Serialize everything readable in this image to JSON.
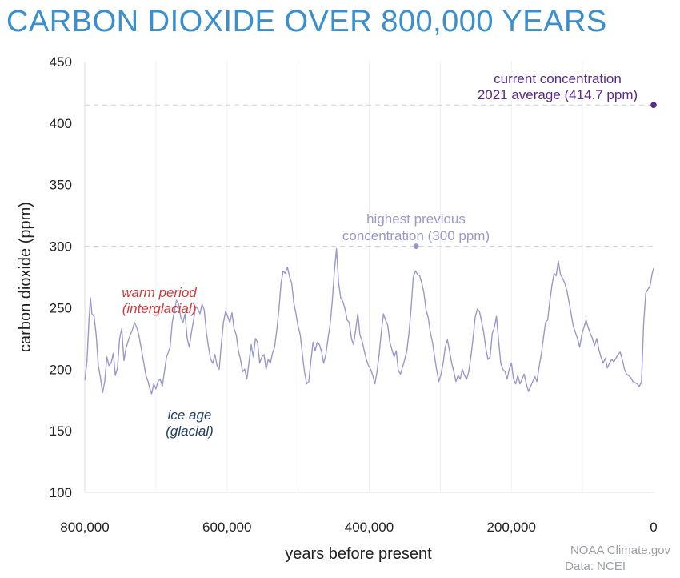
{
  "title": "CARBON DIOXIDE OVER 800,000 YEARS",
  "chart_data": {
    "type": "line",
    "xlabel": "years before present",
    "ylabel": "carbon dioxide (ppm)",
    "xlim": [
      800000,
      0
    ],
    "ylim": [
      100,
      450
    ],
    "x_ticks": [
      {
        "value": 800000,
        "label": "800,000"
      },
      {
        "value": 600000,
        "label": "600,000"
      },
      {
        "value": 400000,
        "label": "400,000"
      },
      {
        "value": 200000,
        "label": "200,000"
      },
      {
        "value": 0,
        "label": "0"
      }
    ],
    "y_ticks": [
      {
        "value": 100,
        "label": "100"
      },
      {
        "value": 150,
        "label": "150"
      },
      {
        "value": 200,
        "label": "200"
      },
      {
        "value": 250,
        "label": "250"
      },
      {
        "value": 300,
        "label": "300"
      },
      {
        "value": 350,
        "label": "350"
      },
      {
        "value": 400,
        "label": "400"
      },
      {
        "value": 450,
        "label": "450"
      }
    ],
    "grid": "minor vertical gridlines",
    "colors": {
      "series": "#9b99cc",
      "current": "#5b2a8c",
      "warm": "#d7373a",
      "glacial": "#1d3e66",
      "title": "#3a8fd0"
    },
    "series": [
      {
        "points": [
          [
            800000,
            191
          ],
          [
            797000,
            206
          ],
          [
            794000,
            241
          ],
          [
            792000,
            258
          ],
          [
            790000,
            245
          ],
          [
            787000,
            243
          ],
          [
            784000,
            228
          ],
          [
            781000,
            203
          ],
          [
            778000,
            193
          ],
          [
            775000,
            181
          ],
          [
            772000,
            190
          ],
          [
            769000,
            210
          ],
          [
            766000,
            203
          ],
          [
            763000,
            205
          ],
          [
            760000,
            213
          ],
          [
            757000,
            195
          ],
          [
            754000,
            201
          ],
          [
            751000,
            225
          ],
          [
            748000,
            233
          ],
          [
            745000,
            207
          ],
          [
            742000,
            217
          ],
          [
            739000,
            223
          ],
          [
            736000,
            228
          ],
          [
            733000,
            232
          ],
          [
            730000,
            238
          ],
          [
            727000,
            234
          ],
          [
            724000,
            228
          ],
          [
            720000,
            215
          ],
          [
            717000,
            205
          ],
          [
            714000,
            195
          ],
          [
            711000,
            190
          ],
          [
            709000,
            185
          ],
          [
            706000,
            180
          ],
          [
            703000,
            188
          ],
          [
            700000,
            184
          ],
          [
            697000,
            190
          ],
          [
            694000,
            192
          ],
          [
            691000,
            186
          ],
          [
            688000,
            198
          ],
          [
            685000,
            210
          ],
          [
            683000,
            213
          ],
          [
            680000,
            218
          ],
          [
            677000,
            238
          ],
          [
            674000,
            247
          ],
          [
            671000,
            256
          ],
          [
            668000,
            253
          ],
          [
            665000,
            242
          ],
          [
            662000,
            238
          ],
          [
            659000,
            245
          ],
          [
            656000,
            225
          ],
          [
            653000,
            218
          ],
          [
            650000,
            230
          ],
          [
            647000,
            240
          ],
          [
            644000,
            251
          ],
          [
            641000,
            249
          ],
          [
            638000,
            245
          ],
          [
            635000,
            253
          ],
          [
            632000,
            248
          ],
          [
            629000,
            230
          ],
          [
            626000,
            218
          ],
          [
            623000,
            208
          ],
          [
            620000,
            205
          ],
          [
            617000,
            212
          ],
          [
            614000,
            203
          ],
          [
            611000,
            200
          ],
          [
            608000,
            220
          ],
          [
            605000,
            238
          ],
          [
            602000,
            247
          ],
          [
            599000,
            243
          ],
          [
            596000,
            238
          ],
          [
            593000,
            246
          ],
          [
            590000,
            233
          ],
          [
            587000,
            228
          ],
          [
            584000,
            215
          ],
          [
            581000,
            208
          ],
          [
            578000,
            198
          ],
          [
            575000,
            200
          ],
          [
            572000,
            192
          ],
          [
            569000,
            206
          ],
          [
            566000,
            220
          ],
          [
            563000,
            210
          ],
          [
            560000,
            225
          ],
          [
            557000,
            222
          ],
          [
            554000,
            205
          ],
          [
            551000,
            210
          ],
          [
            548000,
            212
          ],
          [
            545000,
            200
          ],
          [
            542000,
            208
          ],
          [
            539000,
            205
          ],
          [
            536000,
            213
          ],
          [
            533000,
            218
          ],
          [
            530000,
            232
          ],
          [
            527000,
            248
          ],
          [
            524000,
            270
          ],
          [
            521000,
            280
          ],
          [
            518000,
            278
          ],
          [
            515000,
            283
          ],
          [
            512000,
            275
          ],
          [
            509000,
            270
          ],
          [
            506000,
            254
          ],
          [
            503000,
            245
          ],
          [
            500000,
            235
          ],
          [
            497000,
            228
          ],
          [
            494000,
            212
          ],
          [
            491000,
            198
          ],
          [
            488000,
            188
          ],
          [
            485000,
            190
          ],
          [
            482000,
            207
          ],
          [
            479000,
            222
          ],
          [
            476000,
            215
          ],
          [
            473000,
            222
          ],
          [
            470000,
            220
          ],
          [
            467000,
            214
          ],
          [
            464000,
            205
          ],
          [
            461000,
            212
          ],
          [
            458000,
            225
          ],
          [
            455000,
            236
          ],
          [
            452000,
            255
          ],
          [
            449000,
            280
          ],
          [
            446000,
            298
          ],
          [
            443000,
            270
          ],
          [
            440000,
            258
          ],
          [
            437000,
            255
          ],
          [
            434000,
            249
          ],
          [
            431000,
            240
          ],
          [
            428000,
            238
          ],
          [
            425000,
            225
          ],
          [
            422000,
            220
          ],
          [
            419000,
            232
          ],
          [
            416000,
            245
          ],
          [
            413000,
            228
          ],
          [
            410000,
            223
          ],
          [
            407000,
            215
          ],
          [
            404000,
            208
          ],
          [
            401000,
            203
          ],
          [
            398000,
            200
          ],
          [
            395000,
            195
          ],
          [
            392000,
            188
          ],
          [
            389000,
            198
          ],
          [
            386000,
            212
          ],
          [
            383000,
            230
          ],
          [
            380000,
            245
          ],
          [
            377000,
            240
          ],
          [
            374000,
            236
          ],
          [
            371000,
            222
          ],
          [
            368000,
            216
          ],
          [
            365000,
            210
          ],
          [
            362000,
            215
          ],
          [
            359000,
            199
          ],
          [
            356000,
            196
          ],
          [
            353000,
            202
          ],
          [
            350000,
            208
          ],
          [
            347000,
            215
          ],
          [
            344000,
            230
          ],
          [
            341000,
            250
          ],
          [
            338000,
            275
          ],
          [
            335000,
            280
          ],
          [
            332000,
            277
          ],
          [
            329000,
            276
          ],
          [
            326000,
            270
          ],
          [
            323000,
            262
          ],
          [
            320000,
            248
          ],
          [
            317000,
            242
          ],
          [
            314000,
            230
          ],
          [
            311000,
            222
          ],
          [
            308000,
            210
          ],
          [
            305000,
            199
          ],
          [
            302000,
            190
          ],
          [
            299000,
            196
          ],
          [
            296000,
            205
          ],
          [
            293000,
            218
          ],
          [
            290000,
            224
          ],
          [
            287000,
            215
          ],
          [
            284000,
            205
          ],
          [
            281000,
            198
          ],
          [
            278000,
            190
          ],
          [
            275000,
            195
          ],
          [
            272000,
            192
          ],
          [
            269000,
            200
          ],
          [
            266000,
            195
          ],
          [
            263000,
            192
          ],
          [
            260000,
            198
          ],
          [
            257000,
            210
          ],
          [
            254000,
            225
          ],
          [
            251000,
            242
          ],
          [
            248000,
            249
          ],
          [
            245000,
            247
          ],
          [
            242000,
            239
          ],
          [
            239000,
            230
          ],
          [
            236000,
            217
          ],
          [
            233000,
            208
          ],
          [
            230000,
            210
          ],
          [
            227000,
            229
          ],
          [
            224000,
            234
          ],
          [
            221000,
            243
          ],
          [
            218000,
            223
          ],
          [
            215000,
            205
          ],
          [
            212000,
            200
          ],
          [
            209000,
            198
          ],
          [
            206000,
            192
          ],
          [
            203000,
            200
          ],
          [
            200000,
            205
          ],
          [
            197000,
            192
          ],
          [
            194000,
            188
          ],
          [
            191000,
            195
          ],
          [
            188000,
            188
          ],
          [
            185000,
            192
          ],
          [
            182000,
            196
          ],
          [
            179000,
            188
          ],
          [
            176000,
            182
          ],
          [
            173000,
            186
          ],
          [
            170000,
            190
          ],
          [
            167000,
            194
          ],
          [
            164000,
            190
          ],
          [
            161000,
            202
          ],
          [
            158000,
            212
          ],
          [
            155000,
            225
          ],
          [
            152000,
            238
          ],
          [
            149000,
            240
          ],
          [
            146000,
            255
          ],
          [
            143000,
            268
          ],
          [
            140000,
            278
          ],
          [
            137000,
            276
          ],
          [
            134000,
            288
          ],
          [
            131000,
            277
          ],
          [
            128000,
            274
          ],
          [
            125000,
            270
          ],
          [
            122000,
            264
          ],
          [
            119000,
            255
          ],
          [
            116000,
            245
          ],
          [
            113000,
            235
          ],
          [
            110000,
            230
          ],
          [
            107000,
            225
          ],
          [
            104000,
            218
          ],
          [
            101000,
            228
          ],
          [
            98000,
            234
          ],
          [
            95000,
            240
          ],
          [
            92000,
            234
          ],
          [
            89000,
            229
          ],
          [
            86000,
            225
          ],
          [
            83000,
            219
          ],
          [
            80000,
            225
          ],
          [
            77000,
            216
          ],
          [
            74000,
            210
          ],
          [
            71000,
            205
          ],
          [
            68000,
            209
          ],
          [
            65000,
            201
          ],
          [
            62000,
            205
          ],
          [
            59000,
            208
          ],
          [
            56000,
            206
          ],
          [
            53000,
            209
          ],
          [
            50000,
            212
          ],
          [
            47000,
            214
          ],
          [
            44000,
            208
          ],
          [
            41000,
            200
          ],
          [
            38000,
            196
          ],
          [
            35000,
            195
          ],
          [
            32000,
            193
          ],
          [
            29000,
            190
          ],
          [
            26000,
            189
          ],
          [
            23000,
            188
          ],
          [
            20000,
            186
          ],
          [
            17000,
            190
          ],
          [
            14000,
            238
          ],
          [
            11000,
            262
          ],
          [
            8000,
            265
          ],
          [
            5000,
            268
          ],
          [
            2000,
            278
          ],
          [
            0,
            282
          ]
        ]
      }
    ],
    "current": {
      "x": 0,
      "y": 414.7,
      "label_line1": "current concentration",
      "label_line2": "2021 average (414.7 ppm)"
    },
    "previous_high": {
      "x": 334000,
      "y": 300,
      "label_line1": "highest previous",
      "label_line2": "concentration (300 ppm)"
    },
    "annotations": {
      "warm_line1": "warm period",
      "warm_line2": "(interglacial)",
      "glacial_line1": "ice age",
      "glacial_line2": "(glacial)"
    }
  },
  "credit": {
    "line1": "NOAA Climate.gov",
    "line2": "Data: NCEI"
  }
}
